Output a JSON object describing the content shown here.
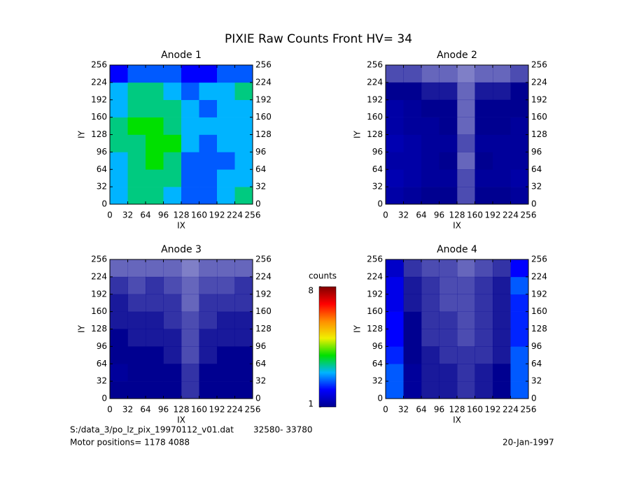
{
  "title": "PIXIE Raw Counts Front HV= 34",
  "chart_data": [
    {
      "type": "heatmap",
      "title": "Anode 1",
      "xlabel": "IX",
      "ylabel": "IY",
      "xlim": [
        0,
        256
      ],
      "ylim": [
        0,
        256
      ],
      "xticks": [
        0,
        32,
        64,
        96,
        128,
        160,
        192,
        224,
        256
      ],
      "yticks": [
        0,
        32,
        64,
        96,
        128,
        160,
        192,
        224,
        256
      ],
      "z": [
        [
          3,
          3.5,
          3.5,
          3,
          2.5,
          2.5,
          3,
          3.5
        ],
        [
          3,
          3.5,
          3.5,
          3.5,
          2.5,
          2.5,
          3,
          3
        ],
        [
          3,
          3.5,
          4,
          3.5,
          2.5,
          2.5,
          2.5,
          3
        ],
        [
          3.5,
          3.5,
          4,
          4,
          3,
          2.5,
          3,
          3
        ],
        [
          3.5,
          4,
          4,
          3.5,
          3,
          3,
          3,
          3
        ],
        [
          3,
          3.5,
          3.5,
          3.5,
          3,
          2.5,
          3,
          3
        ],
        [
          3,
          3.5,
          3.5,
          3,
          2.5,
          3,
          3,
          3.5
        ],
        [
          2,
          2.5,
          2.5,
          2.5,
          2,
          2,
          2.5,
          2.5
        ]
      ]
    },
    {
      "type": "heatmap",
      "title": "Anode 2",
      "xlabel": "IX",
      "ylabel": "IY",
      "xlim": [
        0,
        256
      ],
      "ylim": [
        0,
        256
      ],
      "xticks": [
        0,
        32,
        64,
        96,
        128,
        160,
        192,
        224,
        256
      ],
      "yticks": [
        0,
        32,
        64,
        96,
        128,
        160,
        192,
        224,
        256
      ],
      "z": [
        [
          1.2,
          1.1,
          1,
          1,
          0.7,
          1,
          1,
          1.1
        ],
        [
          1.3,
          1.2,
          1.1,
          1.1,
          0.7,
          1.1,
          1.1,
          1.2
        ],
        [
          1.2,
          1.2,
          1.1,
          1,
          0.6,
          1,
          1.1,
          1.1
        ],
        [
          1.3,
          1.2,
          1.1,
          1.1,
          0.7,
          1.1,
          1.1,
          1.1
        ],
        [
          1.2,
          1.1,
          1.1,
          1,
          0.6,
          1,
          1,
          1.1
        ],
        [
          1.2,
          1.1,
          1,
          1,
          0.6,
          1,
          1,
          1
        ],
        [
          1,
          1,
          0.9,
          0.9,
          0.6,
          0.9,
          0.9,
          1
        ],
        [
          0.7,
          0.7,
          0.6,
          0.6,
          0.5,
          0.6,
          0.6,
          0.7
        ]
      ]
    },
    {
      "type": "heatmap",
      "title": "Anode 3",
      "xlabel": "IX",
      "ylabel": "IY",
      "xlim": [
        0,
        256
      ],
      "ylim": [
        0,
        256
      ],
      "xticks": [
        0,
        32,
        64,
        96,
        128,
        160,
        192,
        224,
        256
      ],
      "yticks": [
        0,
        32,
        64,
        96,
        128,
        160,
        192,
        224,
        256
      ],
      "z": [
        [
          1,
          1,
          1,
          1,
          0.8,
          1,
          1,
          1
        ],
        [
          1.1,
          1,
          1,
          1,
          0.8,
          1,
          1,
          1
        ],
        [
          1,
          1,
          1,
          0.9,
          0.7,
          0.9,
          1,
          1
        ],
        [
          1,
          0.9,
          0.9,
          0.9,
          0.7,
          0.9,
          0.9,
          0.9
        ],
        [
          0.9,
          0.9,
          0.9,
          0.8,
          0.7,
          0.8,
          0.9,
          0.9
        ],
        [
          0.9,
          0.8,
          0.8,
          0.8,
          0.6,
          0.8,
          0.8,
          0.8
        ],
        [
          0.8,
          0.7,
          0.8,
          0.7,
          0.6,
          0.7,
          0.7,
          0.8
        ],
        [
          0.6,
          0.6,
          0.6,
          0.6,
          0.5,
          0.6,
          0.6,
          0.6
        ]
      ]
    },
    {
      "type": "heatmap",
      "title": "Anode 4",
      "xlabel": "IX",
      "ylabel": "IY",
      "xlim": [
        0,
        256
      ],
      "ylim": [
        0,
        256
      ],
      "xticks": [
        0,
        32,
        64,
        96,
        128,
        160,
        192,
        224,
        256
      ],
      "yticks": [
        0,
        32,
        64,
        96,
        128,
        160,
        192,
        224,
        256
      ],
      "z": [
        [
          2.5,
          1.1,
          0.9,
          0.9,
          0.8,
          0.9,
          1,
          2.5
        ],
        [
          2.5,
          1.1,
          0.9,
          0.9,
          0.8,
          0.9,
          1,
          2.5
        ],
        [
          2.2,
          1,
          0.9,
          0.8,
          0.8,
          0.8,
          0.9,
          2.5
        ],
        [
          2,
          1,
          0.8,
          0.8,
          0.7,
          0.8,
          0.9,
          2.2
        ],
        [
          2,
          1,
          0.8,
          0.8,
          0.7,
          0.8,
          0.9,
          2.2
        ],
        [
          1.8,
          0.9,
          0.8,
          0.7,
          0.7,
          0.8,
          0.9,
          2.2
        ],
        [
          1.8,
          0.9,
          0.8,
          0.7,
          0.7,
          0.8,
          0.9,
          2.5
        ],
        [
          1.5,
          0.8,
          0.7,
          0.7,
          0.6,
          0.7,
          0.8,
          2
        ]
      ]
    }
  ],
  "colorbar": {
    "label": "counts",
    "lim": [
      1,
      8
    ],
    "ticks": [
      1,
      8
    ],
    "colors": [
      "#000090",
      "#0000ff",
      "#00b4ff",
      "#00e000",
      "#f0f000",
      "#ff8c00",
      "#ff0000",
      "#800000"
    ]
  },
  "footer": {
    "file": "S:/data_3/po_lz_pix_19970112_v01.dat",
    "range": "32580- 33780",
    "motor": "Motor positions= 1178 4088",
    "date": "20-Jan-1997"
  }
}
